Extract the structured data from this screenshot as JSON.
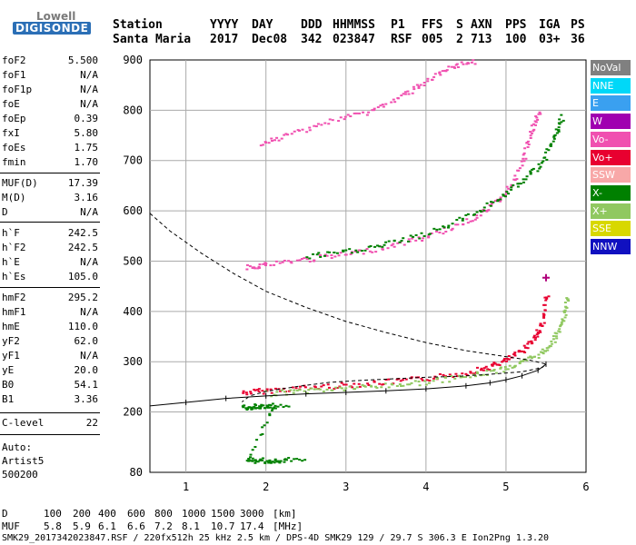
{
  "header": {
    "logo_line1": "Lowell",
    "logo_line2": "DIGISONDE",
    "labels": [
      "Station",
      "YYYY",
      "DAY",
      "DDD",
      "HHMMSS",
      "P1",
      "FFS",
      "S",
      "AXN",
      "PPS",
      "IGA",
      "PS"
    ],
    "values": [
      "Santa Maria",
      "2017",
      "Dec08",
      "342",
      "023847",
      "RSF",
      "005",
      "2",
      "713",
      "100",
      "03+",
      "36"
    ]
  },
  "params": [
    {
      "label": "foF2",
      "value": "5.500"
    },
    {
      "label": "foF1",
      "value": "N/A"
    },
    {
      "label": "foF1p",
      "value": "N/A"
    },
    {
      "label": "foE",
      "value": "N/A"
    },
    {
      "label": "foEp",
      "value": "0.39"
    },
    {
      "label": "fxI",
      "value": "5.80"
    },
    {
      "label": "foEs",
      "value": "1.75"
    },
    {
      "label": "fmin",
      "value": "1.70"
    },
    {
      "label": "MUF(D)",
      "value": "17.39"
    },
    {
      "label": "M(D)",
      "value": "3.16"
    },
    {
      "label": "D",
      "value": "N/A"
    },
    {
      "label": "h`F",
      "value": "242.5"
    },
    {
      "label": "h`F2",
      "value": "242.5"
    },
    {
      "label": "h`E",
      "value": "N/A"
    },
    {
      "label": "h`Es",
      "value": "105.0"
    },
    {
      "label": "hmF2",
      "value": "295.2"
    },
    {
      "label": "hmF1",
      "value": "N/A"
    },
    {
      "label": "hmE",
      "value": "110.0"
    },
    {
      "label": "yF2",
      "value": "62.0"
    },
    {
      "label": "yF1",
      "value": "N/A"
    },
    {
      "label": "yE",
      "value": "20.0"
    },
    {
      "label": "B0",
      "value": "54.1"
    },
    {
      "label": "B1",
      "value": "3.36"
    },
    {
      "label": "C-level",
      "value": "22"
    }
  ],
  "auto": {
    "line1": "Auto:",
    "line2": "Artist5",
    "line3": "500200"
  },
  "legend": [
    {
      "label": "NoVal",
      "color": "#808080"
    },
    {
      "label": "NNE",
      "color": "#00d8f8"
    },
    {
      "label": "E",
      "color": "#3aa0f0"
    },
    {
      "label": "W",
      "color": "#a000b0"
    },
    {
      "label": "Vo-",
      "color": "#f050b0"
    },
    {
      "label": "Vo+",
      "color": "#e80030"
    },
    {
      "label": "SSW",
      "color": "#f8a8a8"
    },
    {
      "label": "X-",
      "color": "#008000"
    },
    {
      "label": "X+",
      "color": "#90c860"
    },
    {
      "label": "SSE",
      "color": "#d8d800"
    },
    {
      "label": "NNW",
      "color": "#1010c0"
    }
  ],
  "footer": {
    "d_label": "D",
    "d_values": [
      "100",
      "200",
      "400",
      "600",
      "800",
      "1000",
      "1500",
      "3000"
    ],
    "d_unit": "[km]",
    "muf_label": "MUF",
    "muf_values": [
      "5.8",
      "5.9",
      "6.1",
      "6.6",
      "7.2",
      "8.1",
      "10.7",
      "17.4"
    ],
    "muf_unit": "[MHz]",
    "info": "SMK29_2017342023847.RSF / 220fx512h 25 kHz 2.5 km / DPS-4D SMK29 129 / 29.7 S 306.3 E Ion2Png 1.3.20"
  },
  "chart_data": {
    "type": "scatter",
    "title": "",
    "xlabel": "",
    "ylabel": "",
    "xlim": [
      0.55,
      6.0
    ],
    "ylim": [
      80,
      900
    ],
    "x_ticks": [
      1,
      2,
      3,
      4,
      5,
      6
    ],
    "y_ticks": [
      80,
      200,
      300,
      400,
      500,
      600,
      700,
      800,
      900
    ],
    "grid": true,
    "legend_position": "right",
    "series": [
      {
        "trace": "o-trace-1",
        "color": "#e80030",
        "points": [
          [
            1.7,
            240
          ],
          [
            2.0,
            244
          ],
          [
            2.5,
            250
          ],
          [
            3.0,
            255
          ],
          [
            3.5,
            261
          ],
          [
            4.0,
            268
          ],
          [
            4.5,
            280
          ],
          [
            4.8,
            292
          ],
          [
            5.0,
            305
          ],
          [
            5.2,
            325
          ],
          [
            5.35,
            350
          ],
          [
            5.45,
            380
          ],
          [
            5.5,
            440
          ]
        ]
      },
      {
        "trace": "x-trace-1",
        "color": "#90c860",
        "points": [
          [
            2.0,
            238
          ],
          [
            2.5,
            244
          ],
          [
            3.0,
            249
          ],
          [
            3.5,
            254
          ],
          [
            4.0,
            261
          ],
          [
            4.5,
            272
          ],
          [
            4.9,
            285
          ],
          [
            5.2,
            300
          ],
          [
            5.45,
            320
          ],
          [
            5.6,
            350
          ],
          [
            5.72,
            390
          ],
          [
            5.75,
            430
          ]
        ]
      },
      {
        "trace": "o-trace-2",
        "color": "#f050b0",
        "points": [
          [
            1.75,
            490
          ],
          [
            2.0,
            495
          ],
          [
            2.5,
            505
          ],
          [
            3.0,
            515
          ],
          [
            3.5,
            530
          ],
          [
            4.0,
            550
          ],
          [
            4.5,
            580
          ],
          [
            4.8,
            610
          ],
          [
            5.0,
            640
          ],
          [
            5.2,
            700
          ],
          [
            5.3,
            760
          ],
          [
            5.4,
            800
          ]
        ]
      },
      {
        "trace": "x-trace-2",
        "color": "#008000",
        "points": [
          [
            2.5,
            510
          ],
          [
            3.0,
            520
          ],
          [
            3.5,
            535
          ],
          [
            4.0,
            556
          ],
          [
            4.5,
            590
          ],
          [
            4.9,
            625
          ],
          [
            5.2,
            660
          ],
          [
            5.45,
            700
          ],
          [
            5.6,
            750
          ],
          [
            5.7,
            790
          ]
        ]
      },
      {
        "trace": "o-trace-3",
        "color": "#f050b0",
        "points": [
          [
            1.9,
            730
          ],
          [
            2.3,
            755
          ],
          [
            2.8,
            780
          ],
          [
            3.3,
            800
          ],
          [
            3.7,
            830
          ],
          [
            4.0,
            860
          ],
          [
            4.3,
            885
          ],
          [
            4.6,
            900
          ]
        ]
      },
      {
        "trace": "es-trace",
        "color": "#008000",
        "points": [
          [
            1.7,
            210
          ],
          [
            1.9,
            212
          ],
          [
            2.1,
            214
          ],
          [
            1.75,
            104
          ],
          [
            2.0,
            105
          ],
          [
            2.3,
            106
          ]
        ]
      }
    ],
    "fitted_trace": [
      [
        0.55,
        212
      ],
      [
        1.0,
        219
      ],
      [
        1.5,
        227
      ],
      [
        2.0,
        232
      ],
      [
        2.5,
        236
      ],
      [
        3.0,
        239
      ],
      [
        3.5,
        242
      ],
      [
        4.0,
        246
      ],
      [
        4.5,
        252
      ],
      [
        4.8,
        258
      ],
      [
        5.0,
        264
      ],
      [
        5.2,
        272
      ],
      [
        5.4,
        283
      ],
      [
        5.5,
        295.2
      ]
    ],
    "profile": [
      [
        0.55,
        595
      ],
      [
        0.8,
        560
      ],
      [
        1.2,
        515
      ],
      [
        1.6,
        475
      ],
      [
        2.0,
        440
      ],
      [
        2.5,
        408
      ],
      [
        3.0,
        380
      ],
      [
        3.5,
        358
      ],
      [
        4.0,
        338
      ],
      [
        4.5,
        322
      ],
      [
        5.0,
        310
      ],
      [
        5.3,
        303
      ],
      [
        5.5,
        295.2
      ],
      [
        5.45,
        288
      ],
      [
        5.2,
        280
      ],
      [
        4.8,
        275
      ],
      [
        4.4,
        271
      ],
      [
        4.0,
        269
      ],
      [
        3.6,
        266
      ],
      [
        3.2,
        263
      ],
      [
        2.8,
        259
      ],
      [
        2.4,
        251
      ],
      [
        2.0,
        241
      ],
      [
        1.8,
        232
      ],
      [
        1.7,
        220
      ]
    ]
  }
}
